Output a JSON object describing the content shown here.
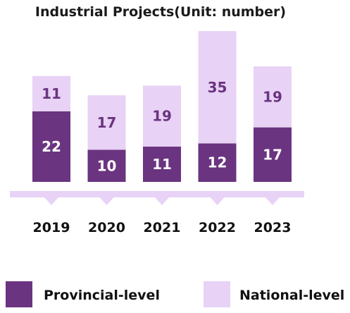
{
  "chart_data": {
    "type": "bar",
    "stacked": true,
    "title": "Industrial Projects(Unit: number)",
    "categories": [
      "2019",
      "2020",
      "2021",
      "2022",
      "2023"
    ],
    "series": [
      {
        "name": "Provincial-level",
        "values": [
          22,
          10,
          11,
          12,
          17
        ],
        "color": "#6a3480",
        "label_color": "#ffffff"
      },
      {
        "name": "National-level",
        "values": [
          11,
          17,
          19,
          35,
          19
        ],
        "color": "#e8d2f5",
        "label_color": "#6a3480"
      }
    ],
    "ylim": [
      0,
      47
    ],
    "grid": false,
    "legend": "bottom"
  }
}
